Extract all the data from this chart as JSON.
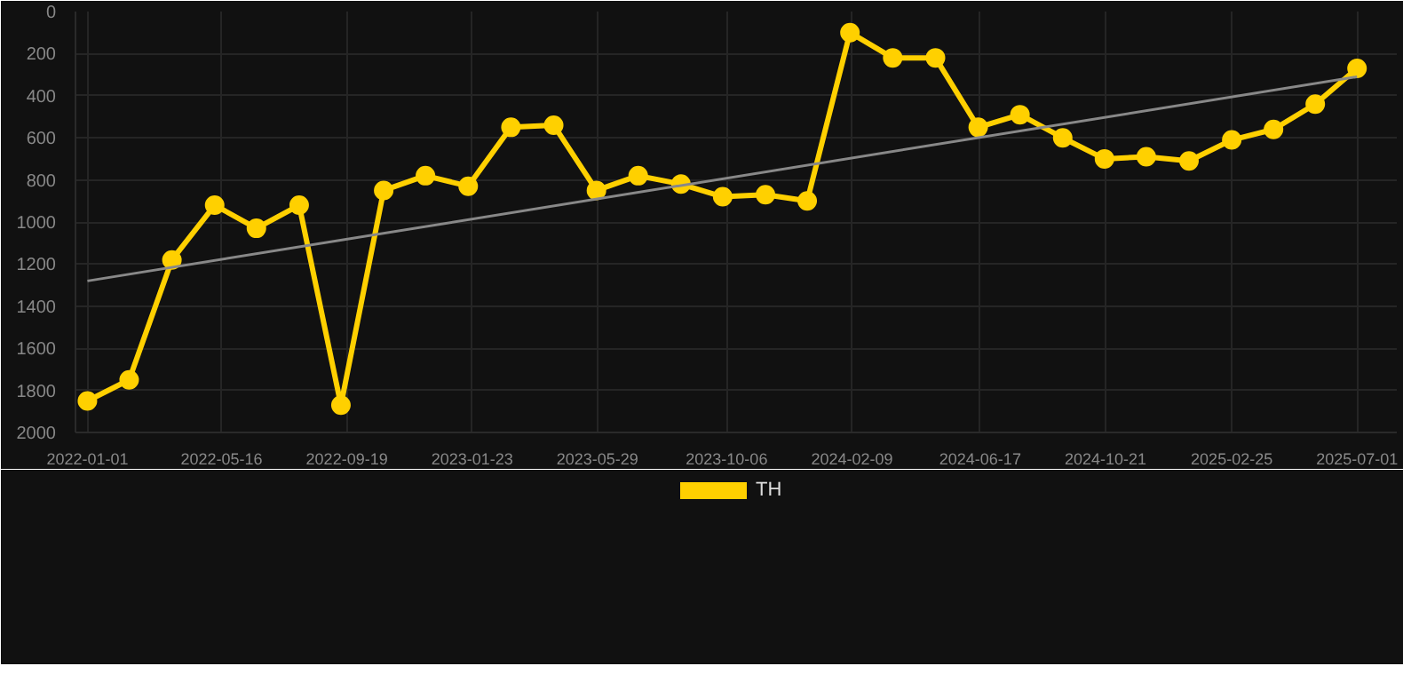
{
  "chart_data": {
    "type": "line",
    "marker": "circle",
    "grid": true,
    "legend": "bottom",
    "xlim": [
      "2021-12-20",
      "2025-08-10"
    ],
    "ylim": [
      2000,
      0
    ],
    "xticks": [
      "2022-01-01",
      "2022-05-16",
      "2022-09-19",
      "2023-01-23",
      "2023-05-29",
      "2023-10-06",
      "2024-02-09",
      "2024-06-17",
      "2024-10-21",
      "2025-02-25",
      "2025-07-01"
    ],
    "yticks": [
      0,
      200,
      400,
      600,
      800,
      1000,
      1200,
      1400,
      1600,
      1800,
      2000
    ],
    "x": [
      "2022-01-01",
      "2022-02-12",
      "2022-03-27",
      "2022-05-09",
      "2022-06-20",
      "2022-08-02",
      "2022-09-13",
      "2022-10-26",
      "2022-12-07",
      "2023-01-19",
      "2023-03-03",
      "2023-04-15",
      "2023-05-28",
      "2023-07-09",
      "2023-08-21",
      "2023-10-02",
      "2023-11-14",
      "2023-12-26",
      "2024-02-07",
      "2024-03-21",
      "2024-05-03",
      "2024-06-15",
      "2024-07-27",
      "2024-09-08",
      "2024-10-20",
      "2024-12-01",
      "2025-01-13",
      "2025-02-25",
      "2025-04-08",
      "2025-05-20",
      "2025-07-01"
    ],
    "series": [
      {
        "name": "TH",
        "color": "#ffd000",
        "values": [
          1850,
          1750,
          1180,
          920,
          1030,
          920,
          1870,
          850,
          780,
          830,
          550,
          540,
          850,
          780,
          820,
          880,
          870,
          900,
          100,
          220,
          220,
          550,
          490,
          600,
          700,
          690,
          710,
          610,
          560,
          440,
          270
        ]
      },
      {
        "type": "line",
        "marker": "none",
        "color": "#888888",
        "x": [
          "2022-01-01",
          "2025-07-01"
        ],
        "values": [
          1280,
          310
        ]
      }
    ]
  }
}
